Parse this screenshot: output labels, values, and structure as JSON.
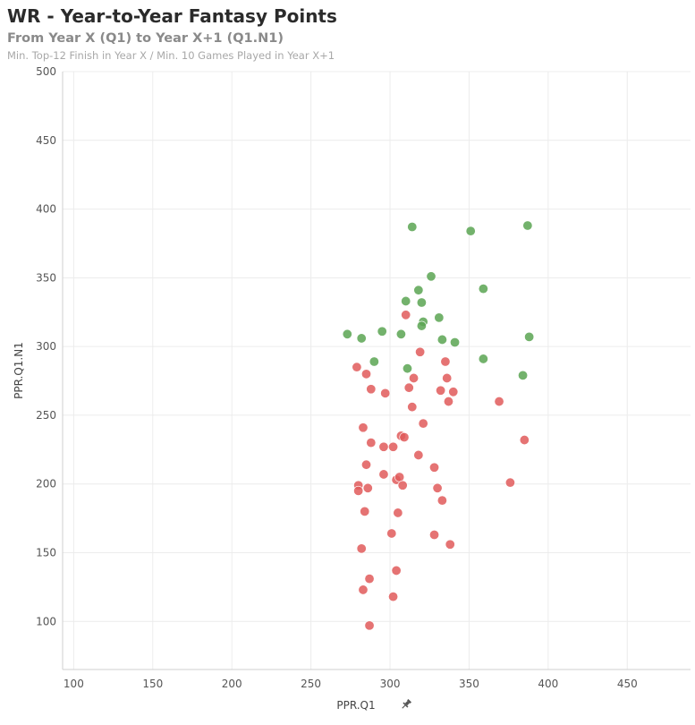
{
  "header": {
    "title": "WR - Year-to-Year Fantasy Points",
    "subtitle": "From Year X (Q1) to Year X+1 (Q1.N1)",
    "note": "Min. Top-12 Finish in Year X / Min. 10 Games Played in Year X+1"
  },
  "icons": {
    "axis_pin": "pin-icon"
  },
  "chart_data": {
    "type": "scatter",
    "xlabel": "PPR.Q1",
    "ylabel": "PPR.Q1.N1",
    "xlim": [
      93,
      490
    ],
    "ylim": [
      65,
      500
    ],
    "xticks": [
      100,
      150,
      200,
      250,
      300,
      350,
      400,
      450
    ],
    "yticks": [
      100,
      150,
      200,
      250,
      300,
      350,
      400,
      450,
      500
    ],
    "grid": true,
    "colors": {
      "improved": "#5aa552",
      "declined": "#e05a5a"
    },
    "series": [
      {
        "color_key": "improved",
        "points": [
          [
            314,
            387
          ],
          [
            351,
            384
          ],
          [
            387,
            388
          ],
          [
            326,
            351
          ],
          [
            359,
            342
          ],
          [
            318,
            341
          ],
          [
            310,
            333
          ],
          [
            320,
            332
          ],
          [
            331,
            321
          ],
          [
            321,
            318
          ],
          [
            320,
            315
          ],
          [
            273,
            309
          ],
          [
            282,
            306
          ],
          [
            295,
            311
          ],
          [
            307,
            309
          ],
          [
            333,
            305
          ],
          [
            341,
            303
          ],
          [
            388,
            307
          ],
          [
            290,
            289
          ],
          [
            359,
            291
          ],
          [
            311,
            284
          ],
          [
            384,
            279
          ]
        ]
      },
      {
        "color_key": "declined",
        "points": [
          [
            310,
            323
          ],
          [
            319,
            296
          ],
          [
            279,
            285
          ],
          [
            285,
            280
          ],
          [
            335,
            289
          ],
          [
            288,
            269
          ],
          [
            297,
            266
          ],
          [
            315,
            277
          ],
          [
            312,
            270
          ],
          [
            336,
            277
          ],
          [
            332,
            268
          ],
          [
            340,
            267
          ],
          [
            337,
            260
          ],
          [
            314,
            256
          ],
          [
            369,
            260
          ],
          [
            321,
            244
          ],
          [
            283,
            241
          ],
          [
            307,
            235
          ],
          [
            309,
            234
          ],
          [
            288,
            230
          ],
          [
            385,
            232
          ],
          [
            296,
            227
          ],
          [
            302,
            227
          ],
          [
            318,
            221
          ],
          [
            285,
            214
          ],
          [
            328,
            212
          ],
          [
            296,
            207
          ],
          [
            304,
            203
          ],
          [
            306,
            205
          ],
          [
            376,
            201
          ],
          [
            308,
            199
          ],
          [
            280,
            199
          ],
          [
            280,
            195
          ],
          [
            286,
            197
          ],
          [
            330,
            197
          ],
          [
            333,
            188
          ],
          [
            284,
            180
          ],
          [
            305,
            179
          ],
          [
            301,
            164
          ],
          [
            328,
            163
          ],
          [
            282,
            153
          ],
          [
            338,
            156
          ],
          [
            304,
            137
          ],
          [
            287,
            131
          ],
          [
            283,
            123
          ],
          [
            302,
            118
          ],
          [
            287,
            97
          ]
        ]
      }
    ]
  }
}
